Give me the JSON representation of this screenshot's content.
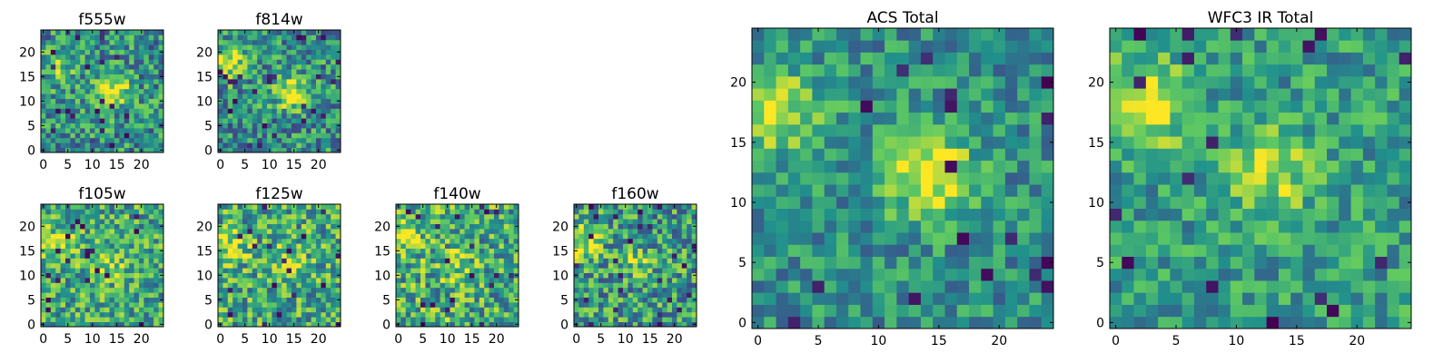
{
  "figure": {
    "colormap": "viridis",
    "colormap_stops": [
      "#440154",
      "#3b528b",
      "#21918c",
      "#5ec962",
      "#fde725"
    ]
  },
  "chart_data": [
    {
      "type": "heatmap",
      "title": "f555w",
      "size": 25,
      "xlim": [
        0,
        24
      ],
      "ylim": [
        0,
        24
      ],
      "x_ticks": [
        0,
        5,
        10,
        15,
        20
      ],
      "y_ticks": [
        0,
        5,
        10,
        15,
        20
      ],
      "blobs": [
        {
          "x": 14,
          "y": 12,
          "amp": 0.5
        },
        {
          "x": 3,
          "y": 17,
          "amp": 0.25
        }
      ],
      "base": 0.5,
      "noise": 0.3,
      "seed": 11
    },
    {
      "type": "heatmap",
      "title": "f814w",
      "size": 25,
      "xlim": [
        0,
        24
      ],
      "ylim": [
        0,
        24
      ],
      "x_ticks": [
        0,
        5,
        10,
        15,
        20
      ],
      "y_ticks": [
        0,
        5,
        10,
        15,
        20
      ],
      "blobs": [
        {
          "x": 14,
          "y": 12,
          "amp": 0.45
        },
        {
          "x": 2,
          "y": 18,
          "amp": 0.45
        }
      ],
      "base": 0.5,
      "noise": 0.3,
      "seed": 23
    },
    {
      "type": "heatmap",
      "title": "f105w",
      "size": 25,
      "xlim": [
        0,
        24
      ],
      "ylim": [
        0,
        24
      ],
      "x_ticks": [
        0,
        5,
        10,
        15,
        20
      ],
      "y_ticks": [
        0,
        5,
        10,
        15,
        20
      ],
      "blobs": [
        {
          "x": 3,
          "y": 16,
          "amp": 0.35
        },
        {
          "x": 13,
          "y": 12,
          "amp": 0.2
        }
      ],
      "base": 0.6,
      "noise": 0.3,
      "seed": 37
    },
    {
      "type": "heatmap",
      "title": "f125w",
      "size": 25,
      "xlim": [
        0,
        24
      ],
      "ylim": [
        0,
        24
      ],
      "x_ticks": [
        0,
        5,
        10,
        15,
        20
      ],
      "y_ticks": [
        0,
        5,
        10,
        15,
        20
      ],
      "blobs": [
        {
          "x": 2,
          "y": 16,
          "amp": 0.3
        },
        {
          "x": 14,
          "y": 13,
          "amp": 0.2
        }
      ],
      "base": 0.6,
      "noise": 0.32,
      "seed": 41
    },
    {
      "type": "heatmap",
      "title": "f140w",
      "size": 25,
      "xlim": [
        0,
        24
      ],
      "ylim": [
        0,
        24
      ],
      "x_ticks": [
        0,
        5,
        10,
        15,
        20
      ],
      "y_ticks": [
        0,
        5,
        10,
        15,
        20
      ],
      "blobs": [
        {
          "x": 1,
          "y": 18,
          "amp": 0.35
        },
        {
          "x": 12,
          "y": 12,
          "amp": 0.2
        }
      ],
      "base": 0.62,
      "noise": 0.34,
      "seed": 53
    },
    {
      "type": "heatmap",
      "title": "f160w",
      "size": 25,
      "xlim": [
        0,
        24
      ],
      "ylim": [
        0,
        24
      ],
      "x_ticks": [
        0,
        5,
        10,
        15,
        20
      ],
      "y_ticks": [
        0,
        5,
        10,
        15,
        20
      ],
      "blobs": [
        {
          "x": 1,
          "y": 17,
          "amp": 0.4
        },
        {
          "x": 12,
          "y": 13,
          "amp": 0.2
        }
      ],
      "base": 0.55,
      "noise": 0.32,
      "seed": 67
    },
    {
      "type": "heatmap",
      "title": "ACS Total",
      "size": 25,
      "xlim": [
        0,
        24
      ],
      "ylim": [
        0,
        24
      ],
      "x_ticks": [
        0,
        5,
        10,
        15,
        20
      ],
      "y_ticks": [
        0,
        5,
        10,
        15,
        20
      ],
      "blobs": [
        {
          "x": 14,
          "y": 12.5,
          "amp": 0.55
        },
        {
          "x": 2,
          "y": 17.5,
          "amp": 0.4
        }
      ],
      "base": 0.5,
      "noise": 0.22,
      "seed": 79
    },
    {
      "type": "heatmap",
      "title": "WFC3 IR Total",
      "size": 25,
      "xlim": [
        0,
        24
      ],
      "ylim": [
        0,
        24
      ],
      "x_ticks": [
        0,
        5,
        10,
        15,
        20
      ],
      "y_ticks": [
        0,
        5,
        10,
        15,
        20
      ],
      "blobs": [
        {
          "x": 2,
          "y": 18,
          "amp": 0.5
        },
        {
          "x": 13,
          "y": 12.5,
          "amp": 0.35
        }
      ],
      "base": 0.55,
      "noise": 0.22,
      "seed": 97
    }
  ]
}
